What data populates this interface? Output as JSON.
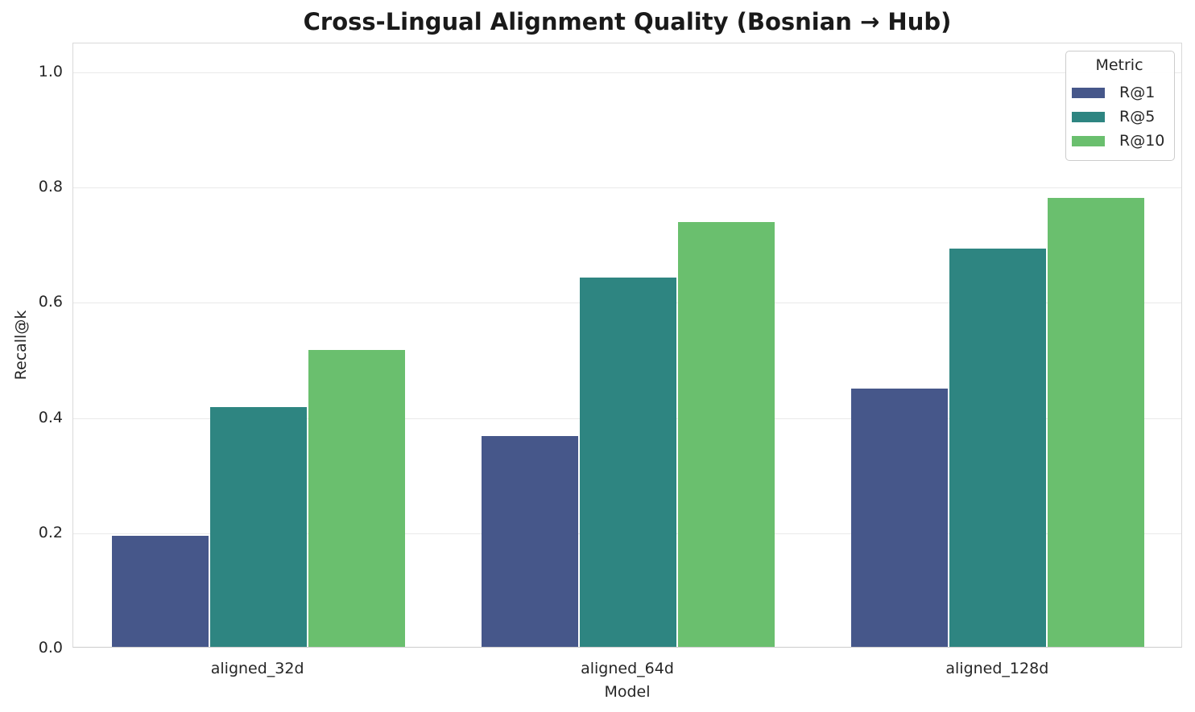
{
  "title": "Cross-Lingual Alignment Quality (Bosnian → Hub)",
  "chart_data": {
    "type": "bar",
    "title": "Cross-Lingual Alignment Quality (Bosnian → Hub)",
    "xlabel": "Model",
    "ylabel": "Recall@k",
    "categories": [
      "aligned_32d",
      "aligned_64d",
      "aligned_128d"
    ],
    "series": [
      {
        "name": "R@1",
        "color": "#46578a",
        "values": [
          0.193,
          0.366,
          0.449
        ]
      },
      {
        "name": "R@5",
        "color": "#2e8581",
        "values": [
          0.416,
          0.641,
          0.692
        ]
      },
      {
        "name": "R@10",
        "color": "#6abf6e",
        "values": [
          0.515,
          0.737,
          0.779
        ]
      }
    ],
    "legend": {
      "title": "Metric",
      "position": "upper right"
    },
    "ylim": [
      0,
      1.05
    ],
    "yticks": [
      "0.0",
      "0.2",
      "0.4",
      "0.6",
      "0.8",
      "1.0"
    ],
    "grid": true,
    "grid_color": "#e9e9e9",
    "background": "#ffffff"
  }
}
